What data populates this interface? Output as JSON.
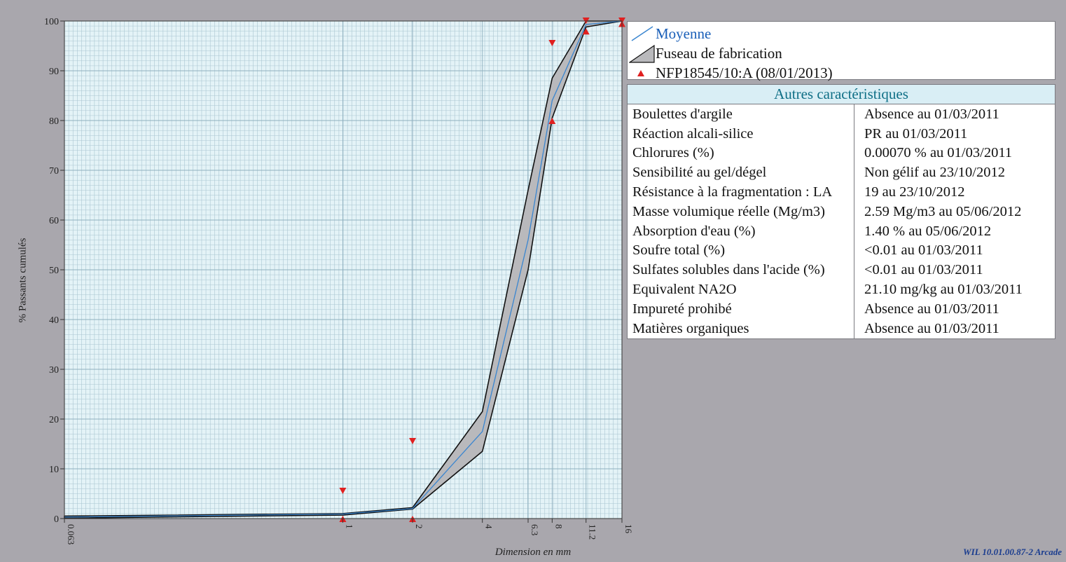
{
  "chart_data": {
    "type": "line",
    "xlabel": "Dimension en mm",
    "ylabel": "% Passants cumulés",
    "x_scale": "log",
    "xlim": [
      0.063,
      16
    ],
    "ylim": [
      0,
      100
    ],
    "x_ticks": [
      "0.063",
      "1",
      "2",
      "4",
      "6.3",
      "8",
      "11.2",
      "16"
    ],
    "y_ticks": [
      "0",
      "10",
      "20",
      "30",
      "40",
      "50",
      "60",
      "70",
      "80",
      "90",
      "100"
    ],
    "grid": true,
    "legend_position": "right",
    "sieves": [
      0.063,
      1,
      2,
      4,
      6.3,
      8,
      11.2,
      16
    ],
    "series": [
      {
        "name": "Moyenne",
        "values": [
          0.3,
          0.9,
          2.0,
          17.5,
          56,
          84,
          99.3,
          100
        ]
      },
      {
        "name": "Fuseau de fabrication",
        "upper": [
          0.5,
          1.0,
          2.2,
          21.5,
          66,
          88.5,
          100,
          100
        ],
        "lower": [
          0.1,
          0.7,
          1.9,
          13.5,
          50,
          80.5,
          98.8,
          100
        ]
      },
      {
        "name": "NFP18545/10:A (08/01/2013)",
        "upper_limits": [
          [
            1,
            5.5
          ],
          [
            2,
            15.5
          ],
          [
            8,
            95.5
          ],
          [
            11.2,
            100
          ],
          [
            16,
            100
          ]
        ],
        "lower_limits": [
          [
            1,
            0
          ],
          [
            2,
            0
          ],
          [
            8,
            80
          ],
          [
            11.2,
            98
          ],
          [
            16,
            99.5
          ]
        ]
      }
    ]
  },
  "legend": {
    "items": [
      "Moyenne",
      "Fuseau de fabrication",
      "NFP18545/10:A (08/01/2013)"
    ]
  },
  "characteristics": {
    "title": "Autres caractéristiques",
    "rows": [
      [
        "Boulettes d'argile",
        "Absence  au 01/03/2011"
      ],
      [
        "Réaction alcali-silice",
        "PR  au 01/03/2011"
      ],
      [
        "Chlorures (%)",
        "0.00070 %  au 01/03/2011"
      ],
      [
        "Sensibilité au gel/dégel",
        "Non gélif  au 23/10/2012"
      ],
      [
        "Résistance à la fragmentation : LA",
        "19   au 23/10/2012"
      ],
      [
        "Masse volumique réelle (Mg/m3)",
        "2.59 Mg/m3  au 05/06/2012"
      ],
      [
        "Absorption d'eau (%)",
        "1.40 %  au 05/06/2012"
      ],
      [
        "Soufre total (%)",
        "<0.01  au 01/03/2011"
      ],
      [
        "Sulfates solubles dans l'acide (%)",
        "<0.01  au 01/03/2011"
      ],
      [
        "Equivalent NA2O",
        "21.10 mg/kg  au 01/03/2011"
      ],
      [
        "Impureté prohibé",
        "Absence  au 01/03/2011"
      ],
      [
        "Matières organiques",
        "Absence  au 01/03/2011"
      ]
    ]
  },
  "footer": "WIL 10.01.00.87-2 Arcade",
  "colors": {
    "background": "#a9a7ad",
    "plot": "#e4f3f7",
    "grid": "#aac6d2",
    "fuseau_fill": "#b9b9bc",
    "moyenne": "#3a86d0",
    "marker": "#e02020",
    "title": "#0f6f86"
  }
}
